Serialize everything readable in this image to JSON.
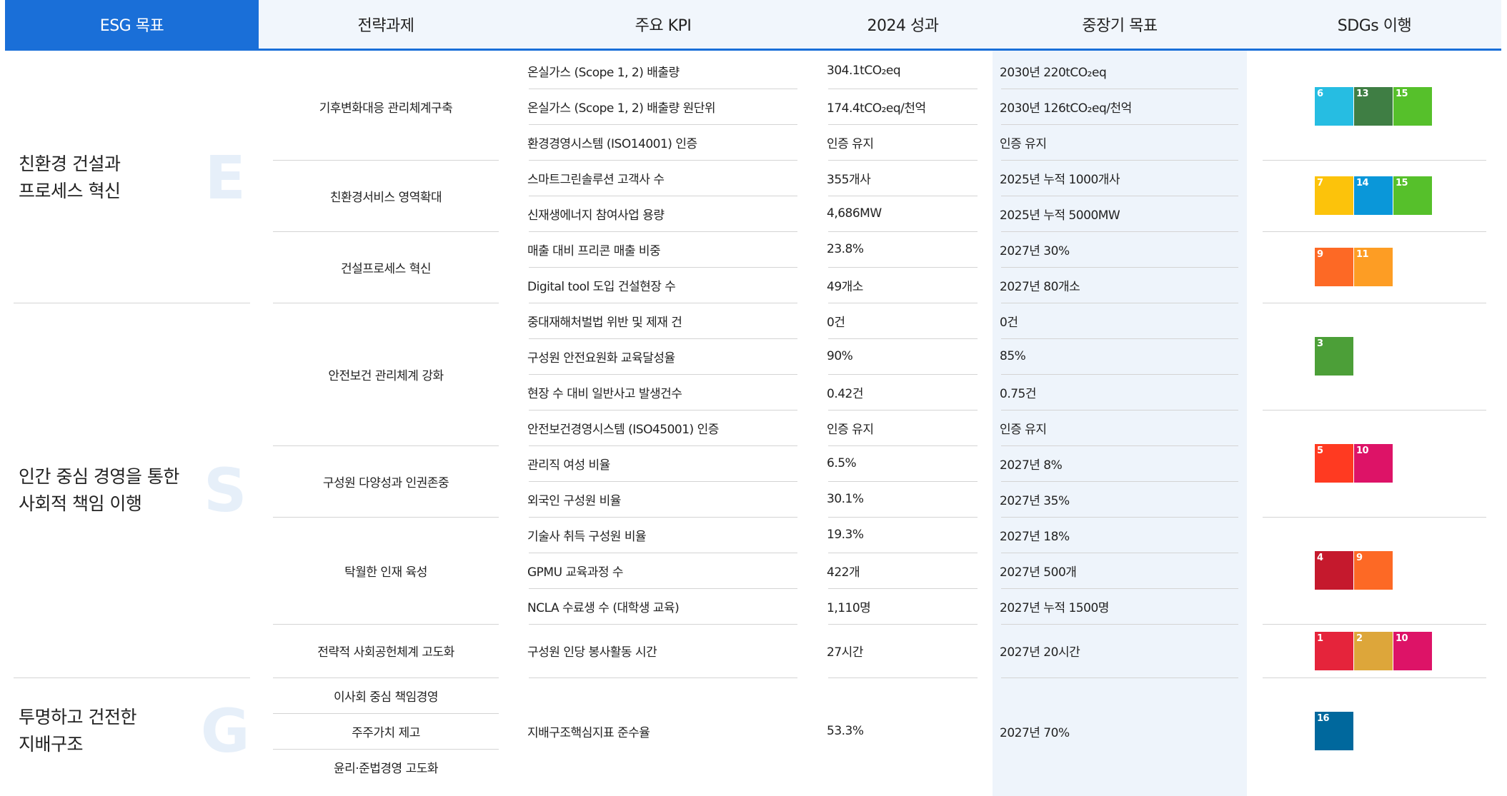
{
  "header": [
    "ESG 목표",
    "전략과제",
    "주요 KPI",
    "2024 성과",
    "중장기 목표",
    "SDGs 이행"
  ],
  "goals": [
    {
      "lines": [
        "친환경 건설과",
        "프로세스 혁신"
      ],
      "letter": "E",
      "strategies": [
        {
          "name": "기후변화대응 관리체계구축",
          "kpis": [
            {
              "kpi": "온실가스 (Scope 1, 2) 배출량",
              "result": "304.1tCO₂eq",
              "target": "2030년 220tCO₂eq",
              "sdgs": [
                6,
                13,
                15
              ]
            },
            {
              "kpi": "온실가스 (Scope 1, 2) 배출량 원단위",
              "result": "174.4tCO₂eq/천억",
              "target": "2030년 126tCO₂eq/천억"
            },
            {
              "kpi": "환경경영시스템 (ISO14001) 인증",
              "result": "인증 유지",
              "target": "인증 유지"
            }
          ]
        },
        {
          "name": "친환경서비스 영역확대",
          "kpis": [
            {
              "kpi": "스마트그린솔루션 고객사 수",
              "result": "355개사",
              "target": "2025년 누적 1000개사",
              "sdgs": [
                7,
                14,
                15
              ]
            },
            {
              "kpi": "신재생에너지 참여사업 용량",
              "result": "4,686MW",
              "target": "2025년 누적 5000MW"
            }
          ]
        },
        {
          "name": "건설프로세스 혁신",
          "kpis": [
            {
              "kpi": "매출 대비 프리콘 매출 비중",
              "result": "23.8%",
              "target": "2027년 30%",
              "sdgs": [
                9,
                11
              ]
            },
            {
              "kpi": "Digital tool 도입 건설현장 수",
              "result": "49개소",
              "target": "2027년 80개소"
            }
          ]
        }
      ]
    },
    {
      "lines": [
        "인간 중심 경영을 통한",
        "사회적 책임 이행"
      ],
      "letter": "S",
      "strategies": [
        {
          "name": "안전보건 관리체계 강화",
          "kpis": [
            {
              "kpi": "중대재해처벌법 위반 및 제재 건",
              "result": "0건",
              "target": "0건",
              "sdgs": [
                3
              ]
            },
            {
              "kpi": "구성원 안전요원화 교육달성율",
              "result": "90%",
              "target": "85%"
            },
            {
              "kpi": "현장 수 대비 일반사고 발생건수",
              "result": "0.42건",
              "target": "0.75건"
            },
            {
              "kpi": "안전보건경영시스템 (ISO45001) 인증",
              "result": "인증 유지",
              "target": "인증 유지",
              "sdgs": [
                5,
                10
              ]
            }
          ]
        },
        {
          "name": "구성원 다양성과 인권존중",
          "kpis": [
            {
              "kpi": "관리직 여성 비율",
              "result": "6.5%",
              "target": "2027년 8%"
            },
            {
              "kpi": "외국인 구성원 비율",
              "result": "30.1%",
              "target": "2027년 35%"
            }
          ]
        },
        {
          "name": "탁월한 인재 육성",
          "kpis": [
            {
              "kpi": "기술사 취득 구성원 비율",
              "result": "19.3%",
              "target": "2027년 18%",
              "sdgs": [
                4,
                9
              ]
            },
            {
              "kpi": "GPMU 교육과정 수",
              "result": "422개",
              "target": "2027년 500개"
            },
            {
              "kpi": "NCLA 수료생 수 (대학생 교육)",
              "result": "1,110명",
              "target": "2027년 누적 1500명"
            }
          ]
        },
        {
          "name": "전략적 사회공헌체계 고도화",
          "kpis": [
            {
              "kpi": "구성원 인당 봉사활동 시간",
              "result": "27시간",
              "target": "2027년 20시간",
              "sdgs": [
                1,
                2,
                10
              ]
            }
          ]
        }
      ]
    },
    {
      "lines": [
        "투명하고 건전한",
        "지배구조"
      ],
      "letter": "G",
      "strategies": [
        {
          "name": "이사회 중심 책임경영"
        },
        {
          "name": "주주가치 제고"
        },
        {
          "name": "윤리·준법경영 고도화"
        }
      ],
      "kpis": [
        {
          "kpi": "지배구조핵심지표 준수율",
          "result": "53.3%",
          "target": "2027년 70%",
          "sdgs": [
            16
          ]
        }
      ]
    }
  ]
}
